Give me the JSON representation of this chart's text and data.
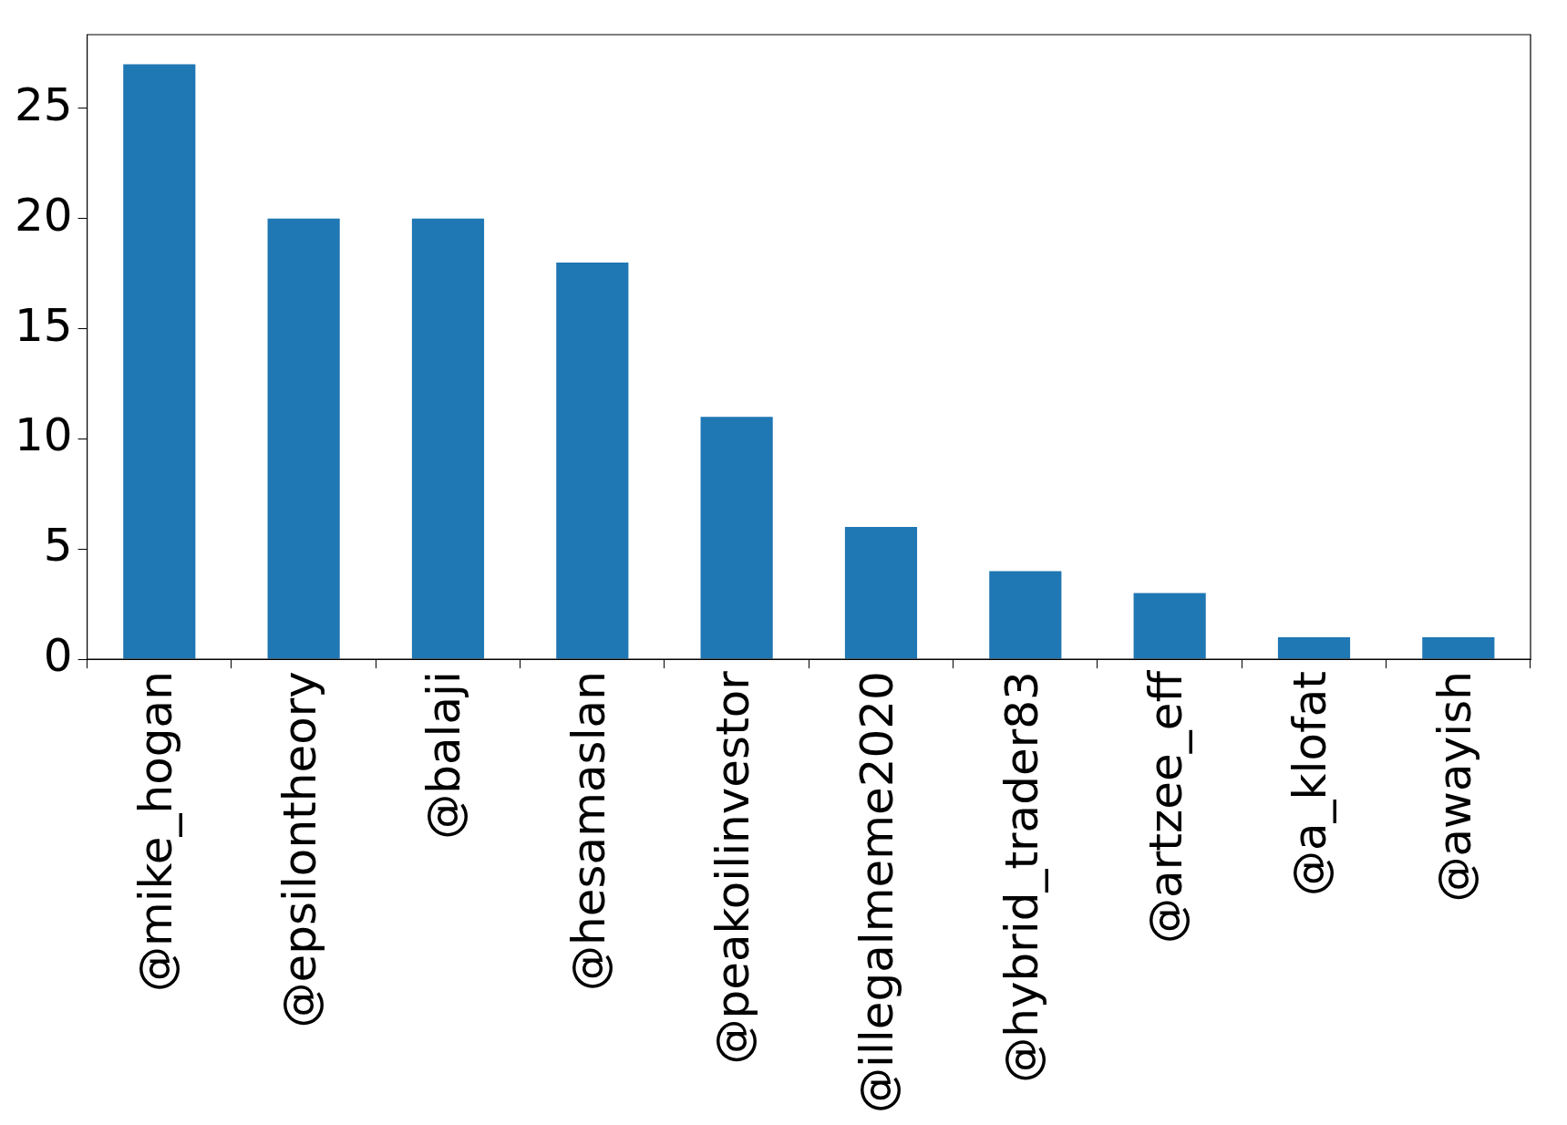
{
  "chart_data": {
    "type": "bar",
    "categories": [
      "@mike_hogan",
      "@epsilontheory",
      "@balaji",
      "@hesamaslan",
      "@peakoilinvestor",
      "@illegalmeme2020",
      "@hybrid_trader83",
      "@artzee_eff",
      "@a_klofat",
      "@awayish"
    ],
    "values": [
      27,
      20,
      20,
      18,
      11,
      6,
      4,
      3,
      1,
      1
    ],
    "color": "#1f77b4",
    "ylim": [
      0,
      28.35
    ],
    "yticks": [
      0,
      5,
      10,
      15,
      20,
      25
    ],
    "grid": false,
    "legend": false
  }
}
